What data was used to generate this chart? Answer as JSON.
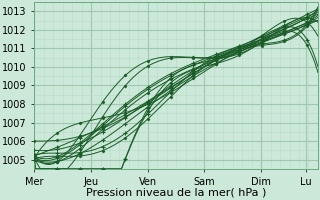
{
  "bg_color": "#cce8d8",
  "grid_major_color": "#9ec8b0",
  "grid_minor_color": "#b8dcc8",
  "line_color": "#1a5c28",
  "marker_color": "#1a5c28",
  "xlabel": "Pression niveau de la mer( hPa )",
  "ylim": [
    1004.5,
    1013.5
  ],
  "yticks": [
    1005,
    1006,
    1007,
    1008,
    1009,
    1010,
    1011,
    1012,
    1013
  ],
  "x_day_labels": [
    "Mer",
    "Jeu",
    "Ven",
    "Sam",
    "Dim",
    "Lu"
  ],
  "x_day_positions": [
    0,
    24,
    48,
    72,
    96,
    115
  ],
  "xlim": [
    0,
    120
  ],
  "xlabel_fontsize": 8,
  "tick_fontsize": 7
}
